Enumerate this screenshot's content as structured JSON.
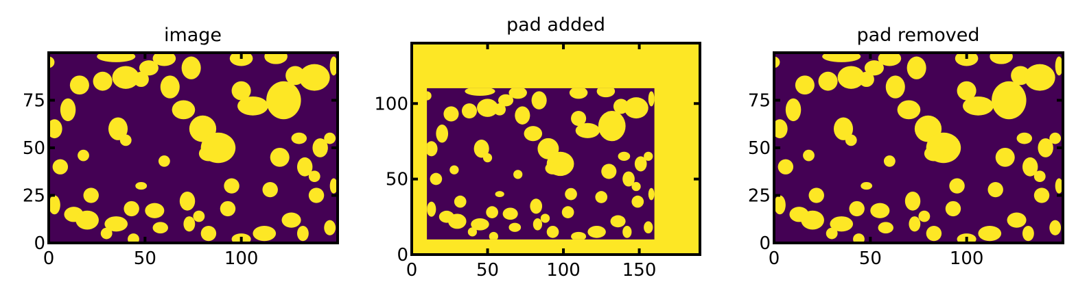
{
  "colors": {
    "background": "#440154",
    "foreground": "#fde725",
    "frame": "#000000"
  },
  "chart_data": [
    {
      "type": "heatmap",
      "title": "image",
      "xlim": [
        0,
        150
      ],
      "ylim": [
        0,
        100
      ],
      "xticks": [
        0,
        50,
        100
      ],
      "yticks": [
        0,
        25,
        50,
        75
      ],
      "xtick_labels": [
        "0",
        "50",
        "100"
      ],
      "ytick_labels": [
        "0",
        "25",
        "50",
        "75"
      ],
      "colormap": "viridis",
      "values": "binary (0 = purple pores, 1 = yellow solid)",
      "blobs": [
        [
          40,
          87,
          7,
          6
        ],
        [
          16,
          83,
          5,
          5
        ],
        [
          10,
          70,
          4,
          6
        ],
        [
          6,
          40,
          4,
          4
        ],
        [
          3,
          60,
          4,
          5
        ],
        [
          13,
          15,
          5,
          4
        ],
        [
          20,
          12,
          6,
          5
        ],
        [
          22,
          25,
          4,
          4
        ],
        [
          18,
          46,
          3,
          3
        ],
        [
          28,
          85,
          5,
          5
        ],
        [
          35,
          98,
          10,
          3
        ],
        [
          48,
          86,
          4,
          4
        ],
        [
          52,
          92,
          5,
          4
        ],
        [
          60,
          97,
          6,
          4
        ],
        [
          63,
          82,
          5,
          6
        ],
        [
          74,
          92,
          5,
          6
        ],
        [
          70,
          70,
          6,
          5
        ],
        [
          80,
          60,
          7,
          7
        ],
        [
          88,
          50,
          9,
          8
        ],
        [
          83,
          47,
          5,
          4
        ],
        [
          100,
          80,
          5,
          5
        ],
        [
          100,
          97,
          6,
          4
        ],
        [
          106,
          72,
          8,
          5
        ],
        [
          118,
          98,
          6,
          4
        ],
        [
          122,
          75,
          9,
          10
        ],
        [
          128,
          88,
          5,
          5
        ],
        [
          138,
          87,
          8,
          7
        ],
        [
          120,
          45,
          5,
          5
        ],
        [
          133,
          40,
          4,
          5
        ],
        [
          141,
          50,
          4,
          5
        ],
        [
          146,
          55,
          3,
          3
        ],
        [
          138,
          35,
          3,
          3
        ],
        [
          60,
          43,
          3,
          3
        ],
        [
          48,
          30,
          3,
          2
        ],
        [
          36,
          60,
          5,
          6
        ],
        [
          40,
          54,
          3,
          3
        ],
        [
          55,
          17,
          5,
          4
        ],
        [
          43,
          18,
          4,
          4
        ],
        [
          35,
          10,
          6,
          4
        ],
        [
          30,
          5,
          3,
          3
        ],
        [
          44,
          2,
          3,
          3
        ],
        [
          72,
          22,
          4,
          5
        ],
        [
          73,
          10,
          3,
          4
        ],
        [
          78,
          14,
          3,
          3
        ],
        [
          93,
          18,
          4,
          4
        ],
        [
          95,
          30,
          4,
          4
        ],
        [
          83,
          5,
          4,
          4
        ],
        [
          100,
          2,
          5,
          3
        ],
        [
          115,
          28,
          4,
          4
        ],
        [
          112,
          5,
          6,
          4
        ],
        [
          126,
          12,
          5,
          4
        ],
        [
          132,
          5,
          3,
          4
        ],
        [
          139,
          25,
          4,
          4
        ],
        [
          146,
          8,
          3,
          4
        ],
        [
          130,
          55,
          4,
          3
        ],
        [
          148,
          30,
          2,
          4
        ],
        [
          3,
          20,
          3,
          5
        ],
        [
          0,
          95,
          3,
          3
        ],
        [
          148,
          93,
          2,
          5
        ],
        [
          58,
          8,
          4,
          3
        ]
      ]
    },
    {
      "type": "heatmap",
      "title": "pad added",
      "xlim": [
        0,
        190
      ],
      "ylim": [
        0,
        140
      ],
      "xticks": [
        0,
        50,
        100,
        150
      ],
      "yticks": [
        0,
        50,
        100
      ],
      "xtick_labels": [
        "0",
        "50",
        "100",
        "150"
      ],
      "ytick_labels": [
        "0",
        "50",
        "100"
      ],
      "colormap": "viridis",
      "values": "binary; image embedded at x 10–160, y 10–110 with value-1 padding"
    },
    {
      "type": "heatmap",
      "title": "pad removed",
      "xlim": [
        0,
        150
      ],
      "ylim": [
        0,
        100
      ],
      "xticks": [
        0,
        50,
        100
      ],
      "yticks": [
        0,
        25,
        50,
        75
      ],
      "xtick_labels": [
        "0",
        "50",
        "100"
      ],
      "ytick_labels": [
        "0",
        "25",
        "50",
        "75"
      ],
      "colormap": "viridis",
      "values": "binary; identical to image"
    }
  ]
}
